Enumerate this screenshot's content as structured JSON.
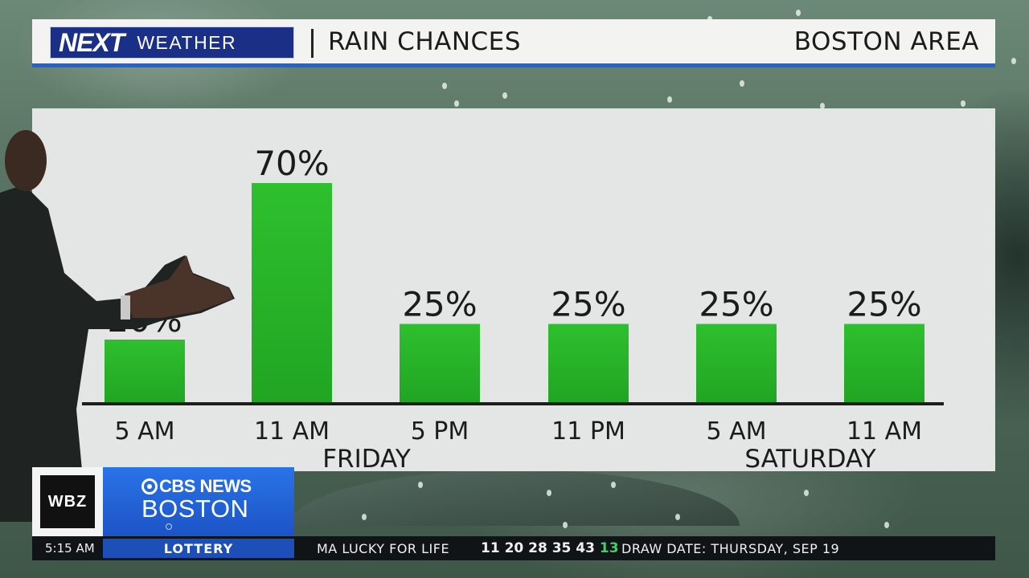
{
  "header": {
    "brand_next": "NEXT",
    "brand_weather": "WEATHER",
    "title": "RAIN CHANCES",
    "location": "BOSTON AREA"
  },
  "chart_data": {
    "type": "bar",
    "title": "RAIN CHANCES",
    "categories": [
      "5 AM",
      "11 AM",
      "5 PM",
      "11 PM",
      "5 AM",
      "11 AM"
    ],
    "values": [
      20,
      70,
      25,
      25,
      25,
      25
    ],
    "value_labels": [
      "20%",
      "70%",
      "25%",
      "25%",
      "25%",
      "25%"
    ],
    "day_groups": [
      {
        "label": "FRIDAY",
        "categories": [
          0,
          1,
          2,
          3
        ]
      },
      {
        "label": "SATURDAY",
        "categories": [
          4,
          5
        ]
      }
    ],
    "unit": "%",
    "ylim": [
      0,
      100
    ],
    "grid": false,
    "bar_color": "#2ec02e"
  },
  "lower_third": {
    "station": "WBZ",
    "network": "CBS NEWS",
    "city": "BOSTON"
  },
  "ticker": {
    "time": "5:15 AM",
    "label": "LOTTERY",
    "game": "MA LUCKY FOR LIFE",
    "numbers": "11 20 28 35 43",
    "bonus": "13",
    "draw_date": "DRAW DATE: THURSDAY, SEP 19"
  },
  "colors": {
    "brand_blue": "#1a2f86",
    "header_underline": "#1f63d6",
    "bar_green": "#2ec02e",
    "cbs_blue": "#1c54c6"
  }
}
